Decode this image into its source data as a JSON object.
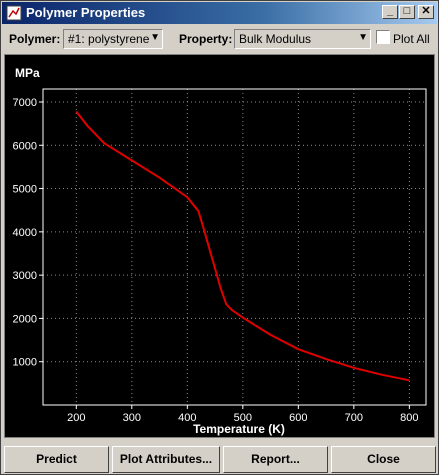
{
  "window": {
    "title": "Polymer Properties",
    "controls": {
      "minimize": "_",
      "maximize": "□",
      "close": "✕"
    }
  },
  "toolbar": {
    "polymer_label": "Polymer:",
    "polymer_value": "#1: polystyrene",
    "property_label": "Property:",
    "property_value": "Bulk Modulus",
    "plot_all_label": "Plot All",
    "plot_all_checked": false
  },
  "chart_data": {
    "type": "line",
    "ylabel": "MPa",
    "xlabel": "Temperature (K)",
    "xlim": [
      140,
      830
    ],
    "ylim": [
      0,
      7300
    ],
    "xticks": [
      200,
      300,
      400,
      500,
      600,
      700,
      800
    ],
    "yticks": [
      1000,
      2000,
      3000,
      4000,
      5000,
      6000,
      7000
    ],
    "grid": true,
    "series": [
      {
        "color": "#e00000",
        "x": [
          200,
          220,
          250,
          300,
          350,
          400,
          420,
          430,
          440,
          450,
          460,
          470,
          480,
          500,
          550,
          600,
          650,
          700,
          750,
          800
        ],
        "y": [
          6780,
          6450,
          6050,
          5650,
          5250,
          4800,
          4480,
          4050,
          3600,
          3150,
          2700,
          2330,
          2200,
          2020,
          1620,
          1290,
          1060,
          860,
          700,
          570
        ]
      }
    ]
  },
  "buttons": {
    "predict": "Predict",
    "plot_attributes": "Plot Attributes...",
    "report": "Report...",
    "close": "Close"
  },
  "colors": {
    "title_bar_start": "#0a246a",
    "title_bar_end": "#a6caf0",
    "plot_background": "#000000",
    "curve": "#e00000"
  }
}
